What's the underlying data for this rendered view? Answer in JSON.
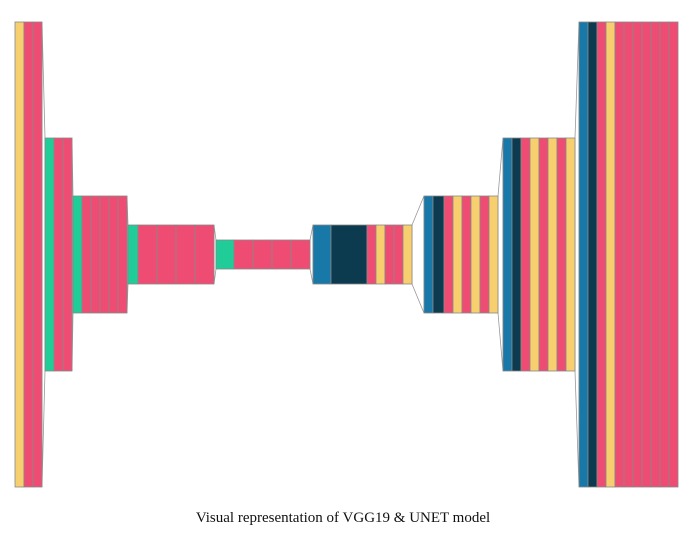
{
  "caption": "Visual representation of VGG19 & UNET model",
  "colors": {
    "conv": "#ee4c73",
    "pool": "#f8cf6e",
    "entry": "#20cc98",
    "upsample": "#1878a8",
    "concat": "#0c3a4f",
    "outline": "#888888",
    "connector": "#999999"
  },
  "model": {
    "encoder_blocks": [
      [
        "pool",
        "conv",
        "conv"
      ],
      [
        "entry",
        "conv",
        "conv"
      ],
      [
        "entry",
        "conv",
        "conv",
        "conv",
        "conv",
        "conv"
      ],
      [
        "entry",
        "conv",
        "conv",
        "conv",
        "conv"
      ],
      [
        "entry",
        "conv",
        "conv",
        "conv",
        "conv"
      ]
    ],
    "decoder_blocks": [
      [
        "upsample",
        "concat",
        "conv",
        "pool",
        "conv",
        "conv",
        "pool"
      ],
      [
        "upsample",
        "concat",
        "conv",
        "pool",
        "conv",
        "pool",
        "conv",
        "pool"
      ],
      [
        "upsample",
        "concat",
        "conv",
        "pool",
        "conv",
        "pool",
        "conv",
        "pool"
      ],
      [
        "upsample",
        "concat",
        "conv",
        "pool",
        "conv",
        "conv",
        "conv",
        "conv",
        "conv",
        "conv",
        "conv"
      ]
    ]
  }
}
